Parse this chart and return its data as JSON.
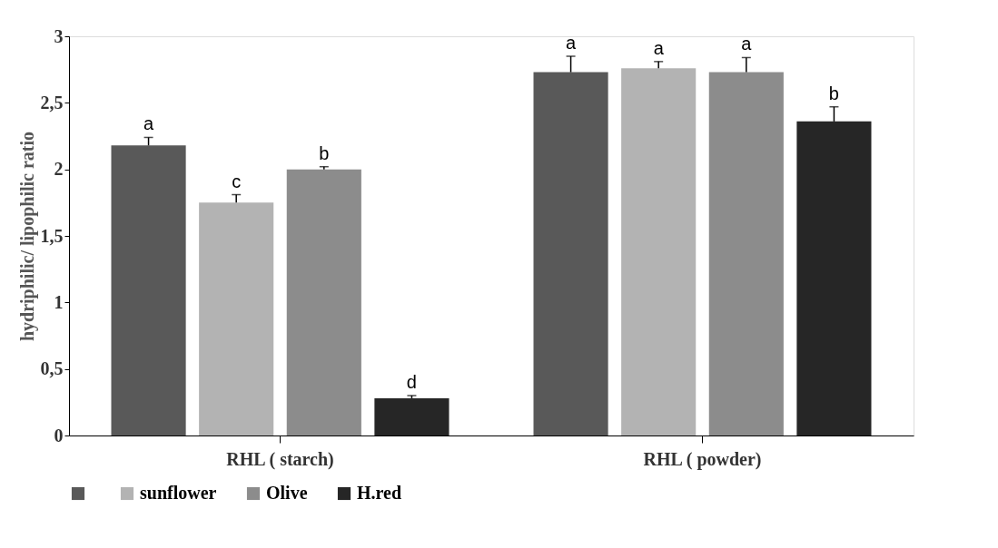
{
  "chart_data": {
    "type": "bar",
    "ylabel": "hydriphilic/  lipophilic  ratio",
    "categories": [
      "RHL ( starch)",
      "RHL ( powder)"
    ],
    "series": [
      {
        "color": "#595959",
        "values": [
          2.18,
          2.73
        ],
        "errors": [
          0.06,
          0.12
        ],
        "value_labels": [
          "a",
          "a"
        ]
      },
      {
        "name": "sunflower",
        "color": "#b3b3b3",
        "values": [
          1.75,
          2.76
        ],
        "errors": [
          0.06,
          0.05
        ],
        "value_labels": [
          "c",
          "a"
        ]
      },
      {
        "name": "Olive",
        "color": "#8c8c8c",
        "values": [
          2.0,
          2.73
        ],
        "errors": [
          0.02,
          0.11
        ],
        "value_labels": [
          "b",
          "a"
        ]
      },
      {
        "name": "H.red",
        "color": "#262626",
        "values": [
          0.28,
          2.36
        ],
        "errors": [
          0.02,
          0.11
        ],
        "value_labels": [
          "d",
          "b"
        ]
      }
    ],
    "ylim": [
      0,
      3
    ],
    "yticks": [
      0,
      {
        "value": 0.5,
        "label": "0,5"
      },
      1,
      {
        "value": 1.5,
        "label": "1,5"
      },
      2,
      {
        "value": 2.5,
        "label": "2,5"
      },
      3
    ],
    "grid": false,
    "legend": "bottom"
  }
}
